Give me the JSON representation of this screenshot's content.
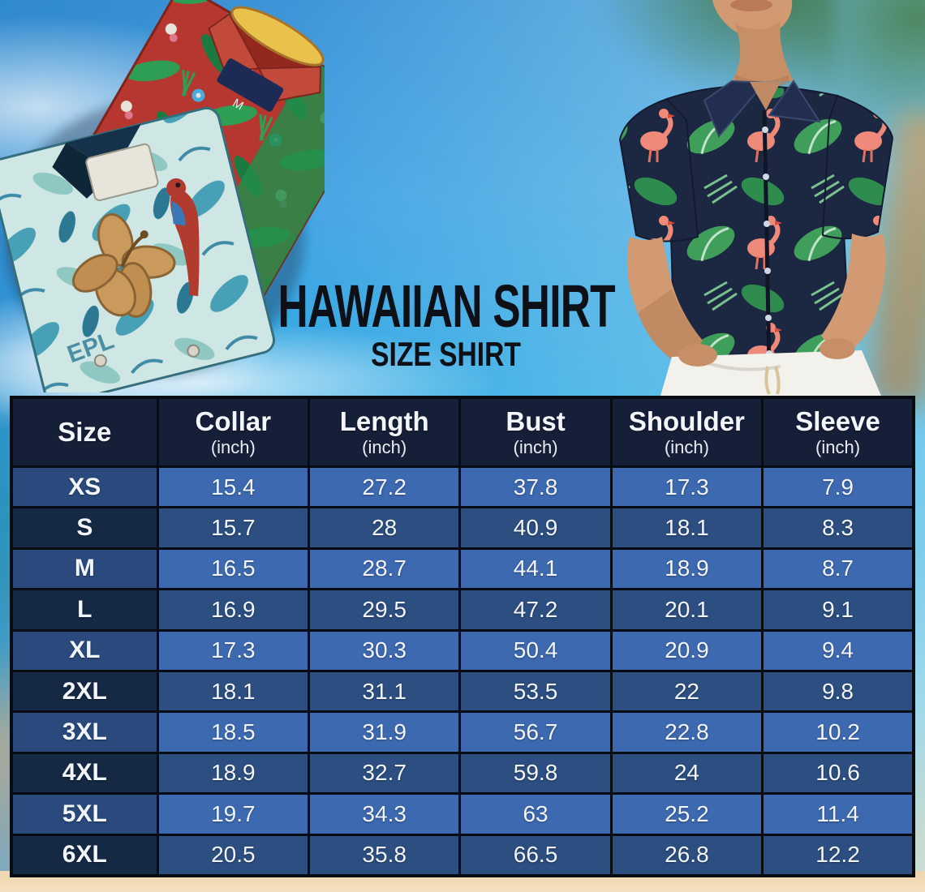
{
  "title": {
    "main": "HAWAIIAN SHIRT",
    "sub": "SIZE SHIRT"
  },
  "size_table": {
    "columns": [
      {
        "label": "Size",
        "unit": ""
      },
      {
        "label": "Collar",
        "unit": "(inch)"
      },
      {
        "label": "Length",
        "unit": "(inch)"
      },
      {
        "label": "Bust",
        "unit": "(inch)"
      },
      {
        "label": "Shoulder",
        "unit": "(inch)"
      },
      {
        "label": "Sleeve",
        "unit": "(inch)"
      }
    ],
    "rows": [
      {
        "size": "XS",
        "values": [
          "15.4",
          "27.2",
          "37.8",
          "17.3",
          "7.9"
        ]
      },
      {
        "size": "S",
        "values": [
          "15.7",
          "28",
          "40.9",
          "18.1",
          "8.3"
        ]
      },
      {
        "size": "M",
        "values": [
          "16.5",
          "28.7",
          "44.1",
          "18.9",
          "8.7"
        ]
      },
      {
        "size": "L",
        "values": [
          "16.9",
          "29.5",
          "47.2",
          "20.1",
          "9.1"
        ]
      },
      {
        "size": "XL",
        "values": [
          "17.3",
          "30.3",
          "50.4",
          "20.9",
          "9.4"
        ]
      },
      {
        "size": "2XL",
        "values": [
          "18.1",
          "31.1",
          "53.5",
          "22",
          "9.8"
        ]
      },
      {
        "size": "3XL",
        "values": [
          "18.5",
          "31.9",
          "56.7",
          "22.8",
          "10.2"
        ]
      },
      {
        "size": "4XL",
        "values": [
          "18.9",
          "32.7",
          "59.8",
          "24",
          "10.6"
        ]
      },
      {
        "size": "5XL",
        "values": [
          "19.7",
          "34.3",
          "63",
          "25.2",
          "11.4"
        ]
      },
      {
        "size": "6XL",
        "values": [
          "20.5",
          "35.8",
          "66.5",
          "26.8",
          "12.2"
        ]
      }
    ]
  },
  "chart_data": {
    "type": "table",
    "title": "HAWAIIAN SHIRT SIZE SHIRT",
    "columns": [
      "Size",
      "Collar (inch)",
      "Length (inch)",
      "Bust (inch)",
      "Shoulder (inch)",
      "Sleeve (inch)"
    ],
    "rows": [
      [
        "XS",
        15.4,
        27.2,
        37.8,
        17.3,
        7.9
      ],
      [
        "S",
        15.7,
        28,
        40.9,
        18.1,
        8.3
      ],
      [
        "M",
        16.5,
        28.7,
        44.1,
        18.9,
        8.7
      ],
      [
        "L",
        16.9,
        29.5,
        47.2,
        20.1,
        9.1
      ],
      [
        "XL",
        17.3,
        30.3,
        50.4,
        20.9,
        9.4
      ],
      [
        "2XL",
        18.1,
        31.1,
        53.5,
        22,
        9.8
      ],
      [
        "3XL",
        18.5,
        31.9,
        56.7,
        22.8,
        10.2
      ],
      [
        "4XL",
        18.9,
        32.7,
        59.8,
        24,
        10.6
      ],
      [
        "5XL",
        19.7,
        34.3,
        63,
        25.2,
        11.4
      ],
      [
        "6XL",
        20.5,
        35.8,
        66.5,
        26.8,
        12.2
      ]
    ]
  },
  "decor": {
    "red_shirt_size_tag": "M",
    "teal_shirt_print_text": "EPL"
  },
  "colors": {
    "header_bg": "#161f38",
    "row_light_size": "#2a4a7d",
    "row_light_value": "#3d69b0",
    "row_dark_size": "#152844",
    "row_dark_value": "#2c4e80",
    "grid_border": "#070b12",
    "table_text": "#f2f5fa",
    "title_text": "#0d1117",
    "sky_blue": "#2ea9e4",
    "sand": "#f2dcb8",
    "model_shirt_navy": "#1c2742",
    "leaf_green": "#3f9e5a",
    "flamingo_pink": "#ef8a7a",
    "red_shirt": "#b5372f",
    "teal_shirt": "#cfe7e4"
  }
}
